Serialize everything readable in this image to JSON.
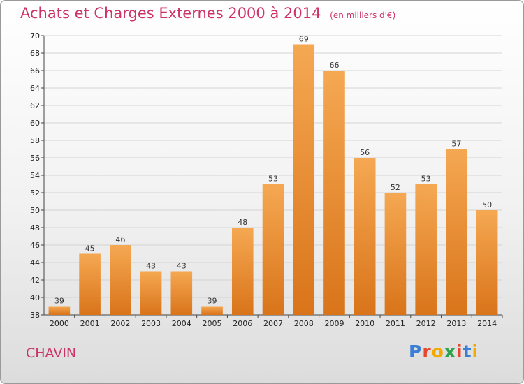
{
  "header": {
    "title": "Achats et Charges Externes 2000 à 2014",
    "subtitle": "(en milliers d'€)"
  },
  "footer": {
    "town": "CHAVIN",
    "logo_text": "Proxiti",
    "logo_colors": [
      "#3a7fd5",
      "#e8452c",
      "#f2a900",
      "#2aa34a",
      "#e8452c",
      "#3a7fd5",
      "#f2a900"
    ]
  },
  "colors": {
    "bar": "#f09a3e",
    "bar_dark": "#d9741a",
    "title": "#cc3366",
    "grid": "#d4d4d4"
  },
  "chart_data": {
    "type": "bar",
    "title": "Achats et Charges Externes 2000 à 2014",
    "subtitle": "(en milliers d'€)",
    "xlabel": "",
    "ylabel": "",
    "categories": [
      "2000",
      "2001",
      "2002",
      "2003",
      "2004",
      "2005",
      "2006",
      "2007",
      "2008",
      "2009",
      "2010",
      "2011",
      "2012",
      "2013",
      "2014"
    ],
    "values": [
      39,
      45,
      46,
      43,
      43,
      39,
      48,
      53,
      69,
      66,
      56,
      52,
      53,
      57,
      50
    ],
    "ylim": [
      38,
      70
    ],
    "yticks": [
      38,
      40,
      42,
      44,
      46,
      48,
      50,
      52,
      54,
      56,
      58,
      60,
      62,
      64,
      66,
      68,
      70
    ],
    "grid": true,
    "legend": "none"
  }
}
